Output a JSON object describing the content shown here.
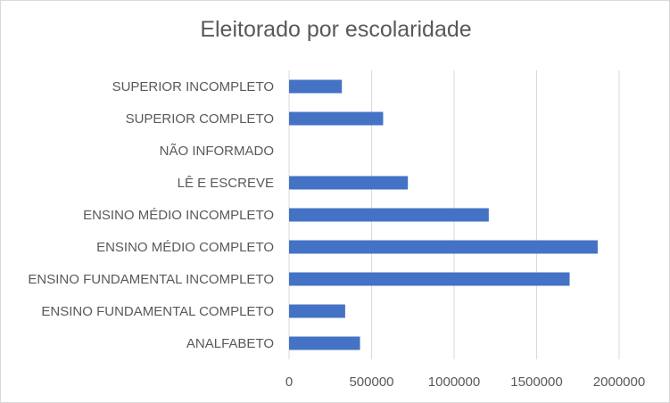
{
  "chart_data": {
    "type": "bar",
    "orientation": "horizontal",
    "title": "Eleitorado por escolaridade",
    "xlabel": "",
    "ylabel": "",
    "categories": [
      "SUPERIOR INCOMPLETO",
      "SUPERIOR COMPLETO",
      "NÃO INFORMADO",
      "LÊ E ESCREVE",
      "ENSINO MÉDIO INCOMPLETO",
      "ENSINO MÉDIO COMPLETO",
      "ENSINO FUNDAMENTAL INCOMPLETO",
      "ENSINO FUNDAMENTAL COMPLETO",
      "ANALFABETO"
    ],
    "values": [
      320000,
      570000,
      0,
      720000,
      1210000,
      1870000,
      1700000,
      340000,
      430000
    ],
    "xlim": [
      0,
      2000000
    ],
    "x_ticks": [
      "0",
      "500000",
      "1000000",
      "1500000",
      "2000000"
    ],
    "grid": "vertical",
    "legend": "none",
    "bar_color": "#4472c4",
    "grid_color": "#d9d9d9",
    "text_color": "#595959"
  }
}
